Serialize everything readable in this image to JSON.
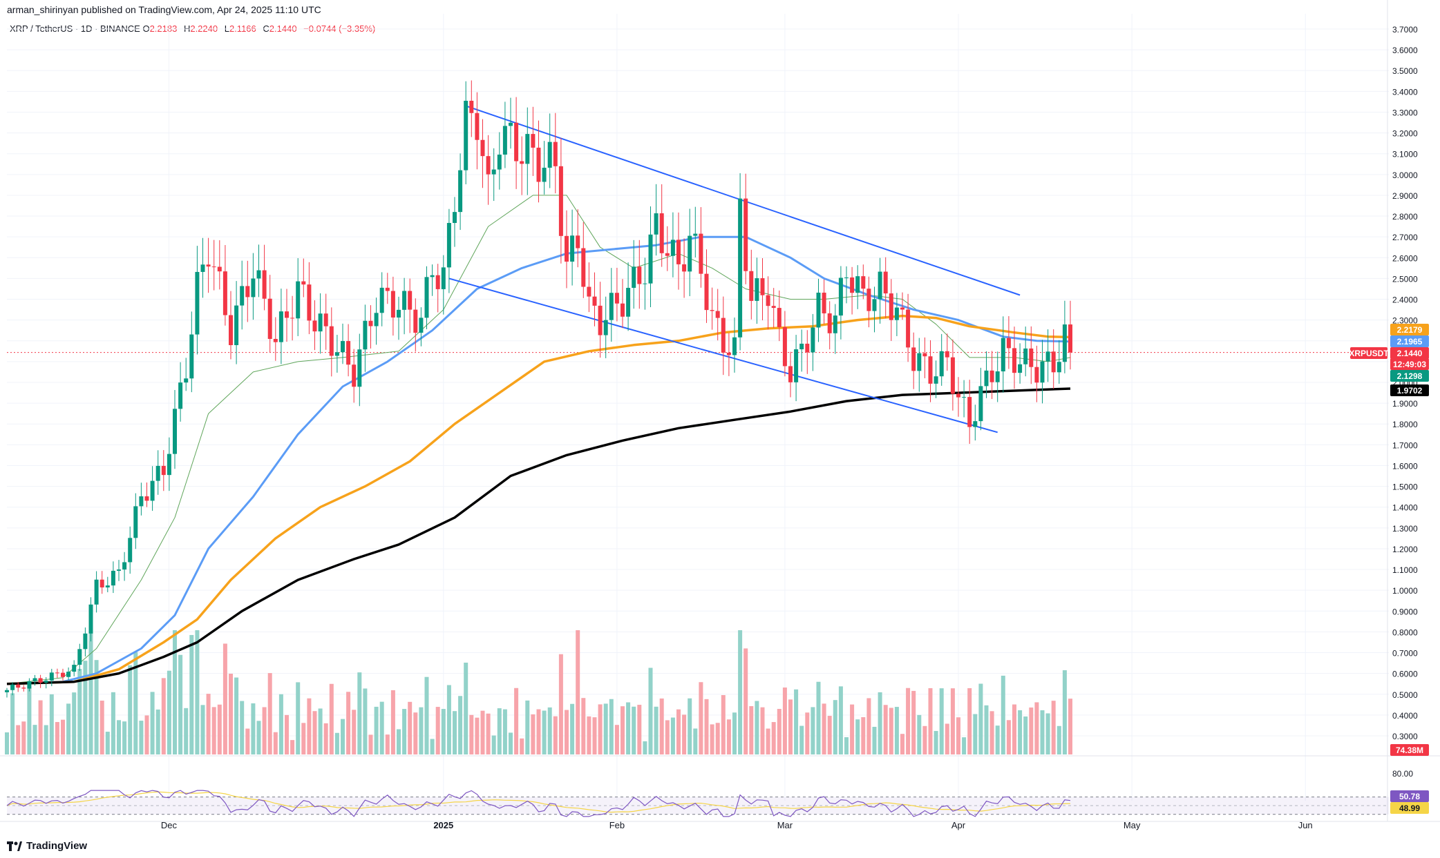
{
  "publisher_line": "arman_shirinyan published on TradingView.com, Apr 24, 2025 11:10 UTC",
  "legend": {
    "symbol": "XRP / TetherUS · 1D · BINANCE",
    "open_label": "O",
    "open": "2.2183",
    "high_label": "H",
    "high": "2.2240",
    "low_label": "L",
    "low": "2.1166",
    "close_label": "C",
    "close": "2.1440",
    "change": "−0.0744 (−3.35%)"
  },
  "brand": "TradingView",
  "colors": {
    "up": "#089981",
    "down": "#f23645",
    "up_vol": "#92d2c9",
    "down_vol": "#f7a4aa",
    "ma_fast": "#5fa55a",
    "ma_blue": "#5b9cf6",
    "ma_orange": "#f7a21b",
    "ma_black": "#000000",
    "channel": "#2962ff",
    "rsi": "#7e57c2",
    "rsi_ma": "#f5d547"
  },
  "chart_data": {
    "type": "candlestick",
    "symbol": "XRPUSDT",
    "interval": "1D",
    "x_axis": {
      "labels": [
        "Dec",
        "2025",
        "Feb",
        "Mar",
        "Apr",
        "May",
        "Jun"
      ]
    },
    "price_axis": {
      "ylim": [
        0.2,
        3.75
      ],
      "ticks": [
        "3.7000",
        "3.6000",
        "3.5000",
        "3.4000",
        "3.3000",
        "3.2000",
        "3.1000",
        "3.0000",
        "2.9000",
        "2.8000",
        "2.7000",
        "2.6000",
        "2.5000",
        "2.4000",
        "2.3000",
        "2.2000",
        "2.1000",
        "2.0000",
        "1.9000",
        "1.8000",
        "1.7000",
        "1.6000",
        "1.5000",
        "1.4000",
        "1.3000",
        "1.2000",
        "1.1000",
        "1.0000",
        "0.9000",
        "0.8000",
        "0.7000",
        "0.6000",
        "0.5000",
        "0.4000",
        "0.3000"
      ]
    },
    "price_labels": [
      {
        "text": "2.2179",
        "value": 2.2179,
        "color": "#f7a21b"
      },
      {
        "text": "2.1965",
        "value": 2.1965,
        "color": "#5b9cf6"
      },
      {
        "text": "XRPUSDT",
        "value": 2.144,
        "color": "#f23645"
      },
      {
        "text": "2.1440",
        "value": 2.144,
        "color": "#f23645"
      },
      {
        "text": "12:49:03",
        "value": 2.144,
        "color": "#f23645"
      },
      {
        "text": "2.1298",
        "value": 2.1298,
        "color": "#089981"
      },
      {
        "text": "1.9702",
        "value": 1.9702,
        "color": "#000000"
      }
    ],
    "ohlc_anchor_closes": [
      {
        "day": 0,
        "close": 0.52
      },
      {
        "day": 12,
        "close": 0.62
      },
      {
        "day": 16,
        "close": 1.02
      },
      {
        "day": 20,
        "close": 1.08
      },
      {
        "day": 24,
        "close": 1.45
      },
      {
        "day": 28,
        "close": 1.58
      },
      {
        "day": 32,
        "close": 2.08
      },
      {
        "day": 34,
        "close": 2.45
      },
      {
        "day": 36,
        "close": 2.65
      },
      {
        "day": 40,
        "close": 2.25
      },
      {
        "day": 44,
        "close": 2.55
      },
      {
        "day": 48,
        "close": 2.2
      },
      {
        "day": 52,
        "close": 2.45
      },
      {
        "day": 55,
        "close": 2.3
      },
      {
        "day": 58,
        "close": 2.2
      },
      {
        "day": 62,
        "close": 2.05
      },
      {
        "day": 66,
        "close": 2.4
      },
      {
        "day": 70,
        "close": 2.38
      },
      {
        "day": 74,
        "close": 2.3
      },
      {
        "day": 76,
        "close": 2.55
      },
      {
        "day": 78,
        "close": 2.5
      },
      {
        "day": 80,
        "close": 2.9
      },
      {
        "day": 82,
        "close": 3.25
      },
      {
        "day": 84,
        "close": 3.28
      },
      {
        "day": 86,
        "close": 2.9
      },
      {
        "day": 88,
        "close": 3.2
      },
      {
        "day": 92,
        "close": 3.12
      },
      {
        "day": 96,
        "close": 3.05
      },
      {
        "day": 98,
        "close": 3.05
      },
      {
        "day": 100,
        "close": 2.55
      },
      {
        "day": 102,
        "close": 2.7
      },
      {
        "day": 104,
        "close": 2.35
      },
      {
        "day": 106,
        "close": 2.3
      },
      {
        "day": 110,
        "close": 2.4
      },
      {
        "day": 114,
        "close": 2.55
      },
      {
        "day": 116,
        "close": 2.75
      },
      {
        "day": 120,
        "close": 2.55
      },
      {
        "day": 122,
        "close": 2.7
      },
      {
        "day": 124,
        "close": 2.55
      },
      {
        "day": 126,
        "close": 2.3
      },
      {
        "day": 128,
        "close": 2.2
      },
      {
        "day": 130,
        "close": 2.15
      },
      {
        "day": 131,
        "close": 2.85
      },
      {
        "day": 133,
        "close": 2.4
      },
      {
        "day": 136,
        "close": 2.45
      },
      {
        "day": 138,
        "close": 2.2
      },
      {
        "day": 140,
        "close": 2.05
      },
      {
        "day": 142,
        "close": 2.15
      },
      {
        "day": 145,
        "close": 2.35
      },
      {
        "day": 148,
        "close": 2.3
      },
      {
        "day": 150,
        "close": 2.55
      },
      {
        "day": 153,
        "close": 2.4
      },
      {
        "day": 156,
        "close": 2.45
      },
      {
        "day": 159,
        "close": 2.35
      },
      {
        "day": 162,
        "close": 2.12
      },
      {
        "day": 165,
        "close": 2.05
      },
      {
        "day": 168,
        "close": 2.1
      },
      {
        "day": 170,
        "close": 1.93
      },
      {
        "day": 172,
        "close": 1.8
      },
      {
        "day": 174,
        "close": 1.95
      },
      {
        "day": 176,
        "close": 2.05
      },
      {
        "day": 178,
        "close": 2.15
      },
      {
        "day": 181,
        "close": 2.1
      },
      {
        "day": 184,
        "close": 2.07
      },
      {
        "day": 187,
        "close": 2.09
      },
      {
        "day": 189,
        "close": 2.22
      },
      {
        "day": 190,
        "close": 2.144
      }
    ],
    "moving_averages": [
      {
        "color": "#5fa55a",
        "points": [
          [
            0,
            0.55
          ],
          [
            10,
            0.58
          ],
          [
            16,
            0.72
          ],
          [
            24,
            1.05
          ],
          [
            30,
            1.35
          ],
          [
            36,
            1.85
          ],
          [
            44,
            2.05
          ],
          [
            52,
            2.1
          ],
          [
            60,
            2.12
          ],
          [
            70,
            2.15
          ],
          [
            78,
            2.35
          ],
          [
            86,
            2.75
          ],
          [
            94,
            2.9
          ],
          [
            100,
            2.9
          ],
          [
            106,
            2.65
          ],
          [
            112,
            2.55
          ],
          [
            120,
            2.62
          ],
          [
            126,
            2.55
          ],
          [
            132,
            2.45
          ],
          [
            140,
            2.4
          ],
          [
            146,
            2.4
          ],
          [
            154,
            2.42
          ],
          [
            160,
            2.4
          ],
          [
            166,
            2.28
          ],
          [
            172,
            2.12
          ],
          [
            180,
            2.12
          ],
          [
            186,
            2.1
          ],
          [
            190,
            2.12
          ]
        ]
      },
      {
        "color": "#5b9cf6",
        "points": [
          [
            0,
            0.55
          ],
          [
            10,
            0.56
          ],
          [
            16,
            0.6
          ],
          [
            24,
            0.72
          ],
          [
            30,
            0.88
          ],
          [
            36,
            1.2
          ],
          [
            44,
            1.45
          ],
          [
            52,
            1.75
          ],
          [
            60,
            1.98
          ],
          [
            68,
            2.1
          ],
          [
            76,
            2.25
          ],
          [
            84,
            2.45
          ],
          [
            92,
            2.55
          ],
          [
            100,
            2.62
          ],
          [
            108,
            2.64
          ],
          [
            116,
            2.66
          ],
          [
            124,
            2.7
          ],
          [
            132,
            2.7
          ],
          [
            140,
            2.6
          ],
          [
            146,
            2.5
          ],
          [
            154,
            2.42
          ],
          [
            162,
            2.35
          ],
          [
            170,
            2.3
          ],
          [
            178,
            2.22
          ],
          [
            184,
            2.2
          ],
          [
            190,
            2.1965
          ]
        ]
      },
      {
        "color": "#f7a21b",
        "points": [
          [
            0,
            0.55
          ],
          [
            12,
            0.56
          ],
          [
            20,
            0.62
          ],
          [
            28,
            0.75
          ],
          [
            34,
            0.86
          ],
          [
            40,
            1.05
          ],
          [
            48,
            1.25
          ],
          [
            56,
            1.4
          ],
          [
            64,
            1.5
          ],
          [
            72,
            1.62
          ],
          [
            80,
            1.8
          ],
          [
            88,
            1.95
          ],
          [
            96,
            2.1
          ],
          [
            104,
            2.15
          ],
          [
            112,
            2.18
          ],
          [
            120,
            2.2
          ],
          [
            128,
            2.24
          ],
          [
            136,
            2.26
          ],
          [
            144,
            2.27
          ],
          [
            152,
            2.3
          ],
          [
            160,
            2.32
          ],
          [
            166,
            2.31
          ],
          [
            172,
            2.27
          ],
          [
            180,
            2.24
          ],
          [
            186,
            2.22
          ],
          [
            190,
            2.2179
          ]
        ]
      },
      {
        "color": "#000000",
        "points": [
          [
            0,
            0.55
          ],
          [
            12,
            0.56
          ],
          [
            20,
            0.6
          ],
          [
            28,
            0.68
          ],
          [
            34,
            0.75
          ],
          [
            42,
            0.9
          ],
          [
            52,
            1.05
          ],
          [
            62,
            1.15
          ],
          [
            70,
            1.22
          ],
          [
            80,
            1.35
          ],
          [
            90,
            1.55
          ],
          [
            100,
            1.65
          ],
          [
            110,
            1.72
          ],
          [
            120,
            1.78
          ],
          [
            130,
            1.82
          ],
          [
            140,
            1.86
          ],
          [
            150,
            1.91
          ],
          [
            160,
            1.94
          ],
          [
            170,
            1.95
          ],
          [
            180,
            1.96
          ],
          [
            190,
            1.9702
          ]
        ]
      }
    ],
    "channel_lines": [
      {
        "from": [
          82,
          3.33
        ],
        "to": [
          181,
          2.42
        ]
      },
      {
        "from": [
          79,
          2.5
        ],
        "to": [
          177,
          1.76
        ]
      }
    ],
    "volume_axis": {
      "label": "74.38M"
    },
    "rsi": {
      "levels": [
        {
          "text": "80.00",
          "value": 80
        }
      ],
      "value_labels": [
        {
          "text": "50.78",
          "value": 50.78,
          "color": "#7e57c2"
        },
        {
          "text": "48.99",
          "value": 48.99,
          "color": "#f5d547"
        }
      ],
      "ylim": [
        20,
        90
      ]
    }
  }
}
